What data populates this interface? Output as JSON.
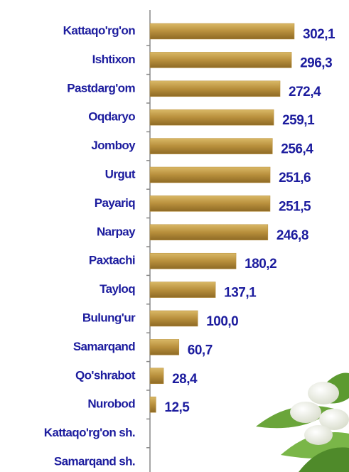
{
  "chart_data": {
    "type": "bar",
    "orientation": "horizontal",
    "categories": [
      "Kattaqo'rg'on",
      "Ishtixon",
      "Pastdarg'om",
      "Oqdaryo",
      "Jomboy",
      "Urgut",
      "Payariq",
      "Narpay",
      "Paxtachi",
      "Tayloq",
      "Bulung'ur",
      "Samarqand",
      "Qo'shrabot",
      "Nurobod",
      "Kattaqo'rg'on sh.",
      "Samarqand sh."
    ],
    "values": [
      302.1,
      296.3,
      272.4,
      259.1,
      256.4,
      251.6,
      251.5,
      246.8,
      180.2,
      137.1,
      100.0,
      60.7,
      28.4,
      12.5,
      null,
      null
    ],
    "value_labels": [
      "302,1",
      "296,3",
      "272,4",
      "259,1",
      "256,4",
      "251,6",
      "251,5",
      "246,8",
      "180,2",
      "137,1",
      "100,0",
      "60,7",
      "28,4",
      "12,5",
      null,
      null
    ],
    "color": "#b88f3c"
  }
}
